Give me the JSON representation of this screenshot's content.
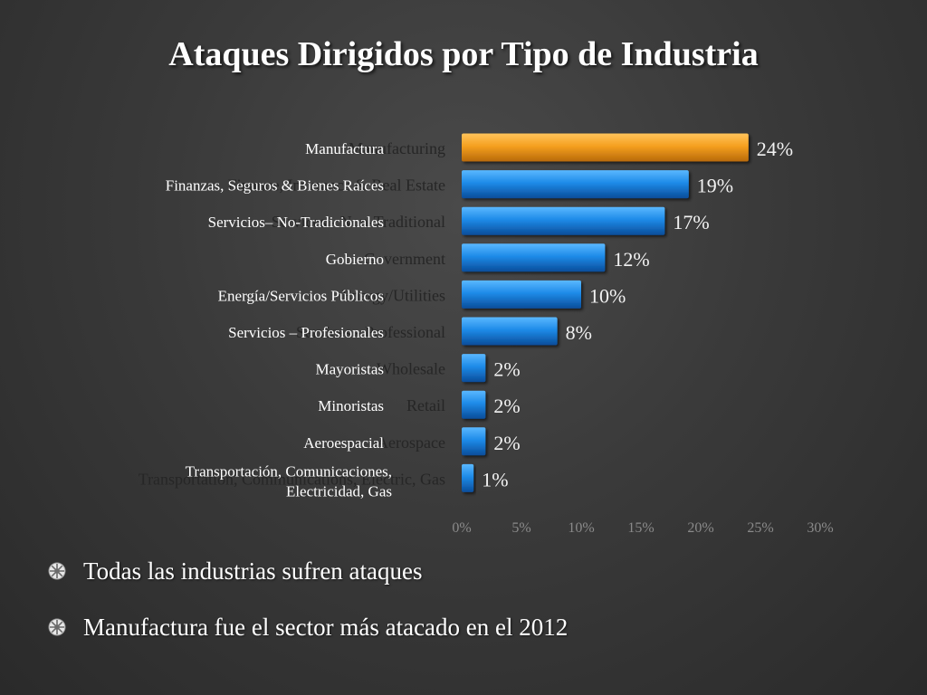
{
  "slide": {
    "title": "Ataques Dirigidos por Tipo de Industria"
  },
  "chart_data": {
    "type": "bar",
    "orientation": "horizontal",
    "categories": [
      "Manufactura",
      "Finanzas, Seguros & Bienes Raíces",
      "Servicios– No-Tradicionales",
      "Gobierno",
      "Energía/Servicios Públicos",
      "Servicios – Profesionales",
      "Mayoristas",
      "Minoristas",
      "Aeroespacial",
      [
        "Transportación, Comunicaciones,",
        "Electricidad, Gas"
      ]
    ],
    "background_categories": [
      "Manufacturing",
      "Finance, Insurance & Real Estate",
      "Services - Non-Traditional",
      "Government",
      "Energy/Utilities",
      "Services - Professional",
      "Wholesale",
      "Retail",
      "Aerospace",
      "Transportation, Communications, Electric, Gas"
    ],
    "values": [
      24,
      19,
      17,
      12,
      10,
      8,
      2,
      2,
      2,
      1
    ],
    "data_labels": [
      "24%",
      "19%",
      "17%",
      "12%",
      "10%",
      "8%",
      "2%",
      "2%",
      "2%",
      "1%"
    ],
    "xticks": [
      "0%",
      "5%",
      "10%",
      "15%",
      "20%",
      "25%",
      "30%"
    ],
    "xlim": [
      0,
      30
    ],
    "highlight_index": 0,
    "colors": {
      "highlight": "#f5a020",
      "bar": "#1e8be8",
      "bar_dark": "#0a4d9a"
    },
    "grid": false
  },
  "bullets": [
    {
      "icon": "bullet-wheel-icon",
      "text": "Todas las industrias sufren ataques"
    },
    {
      "icon": "bullet-wheel-icon",
      "text": "Manufactura  fue el sector más atacado en el 2012"
    }
  ]
}
